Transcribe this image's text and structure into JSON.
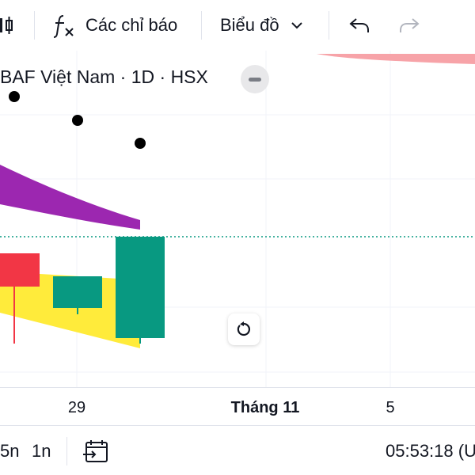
{
  "toolbar": {
    "indicators_label": "Các chỉ báo",
    "chart_type_label": "Biểu đồ"
  },
  "legend": {
    "symbol_text": "BAF Việt Nam · 1D · HSX"
  },
  "time_axis": {
    "ticks": [
      "29",
      "Tháng 11",
      "5"
    ]
  },
  "bottom_bar": {
    "range_5n": "5n",
    "range_1n": "1n",
    "clock": "05:53:18 (U"
  },
  "colors": {
    "up": "#089981",
    "down": "#f23645",
    "purple_band": "#9c27b0",
    "yellow_band": "#ffeb3b",
    "red_band": "#f7a3a8",
    "price_line": "#089981"
  },
  "icons": {
    "compare": "compare-bars-icon",
    "indicators": "fx-icon",
    "chart_type": "chevron-down-icon",
    "undo": "undo-icon",
    "redo": "redo-icon",
    "legend_collapse": "minus-icon",
    "reset": "reset-icon",
    "go_to_date": "calendar-goto-icon"
  }
}
